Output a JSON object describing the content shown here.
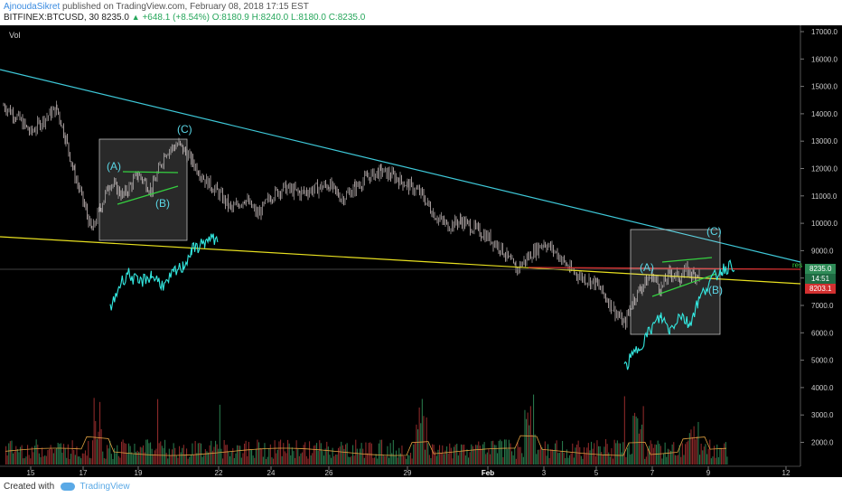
{
  "header": {
    "author": "AjnoudaSikret",
    "published_text": "published on TradingView.com, February 08, 2018 17:15 EST",
    "symbol": "BITFINEX:BTCUSD, 30",
    "last": "8235.0",
    "change": "+648.1 (+8.54%)",
    "ohlc": "O:8180.9 H:8240.0 L:8180.0 C:8235.0"
  },
  "pane_label": "Vol",
  "footer": {
    "created_with": "Created with",
    "brand": "TradingView"
  },
  "colors": {
    "background": "#000000",
    "candles": "#b0a0a0",
    "trendline_down": "#3ec8d8",
    "trendline_support": "#e8e020",
    "resistance": "#d23030",
    "triangle": "#35d040",
    "overlay_projection": "#33e8e0",
    "volume_up": "#2e8b57",
    "volume_down": "#a23030"
  },
  "chart_data": {
    "type": "line",
    "title": "BITFINEX:BTCUSD, 30",
    "y_axis": {
      "range": [
        1000,
        17500
      ],
      "ticks": [
        "17000.0",
        "16000.0",
        "15000.0",
        "14000.0",
        "13000.0",
        "12000.0",
        "11000.0",
        "10000.0",
        "9000.0",
        "8000.0",
        "7000.0",
        "6000.0",
        "5000.0",
        "4000.0",
        "3000.0",
        "2000.0"
      ]
    },
    "x_axis": {
      "ticks": [
        "15",
        "17",
        "19",
        "22",
        "24",
        "26",
        "29",
        "Feb",
        "3",
        "5",
        "7",
        "9",
        "12"
      ]
    },
    "price_labels": {
      "last": "8235.0",
      "countdown": "14:51",
      "line_level": "8203.1"
    },
    "resistance_label": "res",
    "wave_labels": [
      {
        "text": "(A)",
        "day": "Jan 18",
        "price": 12000
      },
      {
        "text": "(B)",
        "day": "Jan 19",
        "price": 10700
      },
      {
        "text": "(C)",
        "day": "Jan 20",
        "price": 13400
      },
      {
        "text": "(A)",
        "day": "Feb 7",
        "price": 8050
      },
      {
        "text": "(B)",
        "day": "Feb 8",
        "price": 7500
      },
      {
        "text": "(C)",
        "day": "Feb 8",
        "price": 9550
      }
    ],
    "series": [
      {
        "name": "",
        "values_approx": [
          [
            "Jan 14",
            14300
          ],
          [
            "Jan 14",
            13900
          ],
          [
            "Jan 15",
            13300
          ],
          [
            "Jan 15",
            13800
          ],
          [
            "Jan 16",
            14200
          ],
          [
            "Jan 16",
            13100
          ],
          [
            "Jan 16",
            11800
          ],
          [
            "Jan 17",
            10800
          ],
          [
            "Jan 17",
            9700
          ],
          [
            "Jan 17",
            10600
          ],
          [
            "Jan 18",
            11500
          ],
          [
            "Jan 18",
            11000
          ],
          [
            "Jan 19",
            11800
          ],
          [
            "Jan 19",
            11200
          ],
          [
            "Jan 20",
            12600
          ],
          [
            "Jan 20",
            12900
          ],
          [
            "Jan 21",
            12300
          ],
          [
            "Jan 21",
            11600
          ],
          [
            "Jan 22",
            11100
          ],
          [
            "Jan 22",
            10500
          ],
          [
            "Jan 23",
            10900
          ],
          [
            "Jan 23",
            10300
          ],
          [
            "Jan 24",
            11000
          ],
          [
            "Jan 24",
            11300
          ],
          [
            "Jan 25",
            11100
          ],
          [
            "Jan 26",
            11400
          ],
          [
            "Jan 26",
            10900
          ],
          [
            "Jan 27",
            11300
          ],
          [
            "Jan 27",
            11700
          ],
          [
            "Jan 28",
            11900
          ],
          [
            "Jan 28",
            11700
          ],
          [
            "Jan 29",
            11400
          ],
          [
            "Jan 29",
            11100
          ],
          [
            "Jan 30",
            10300
          ],
          [
            "Jan 30",
            9900
          ],
          [
            "Jan 31",
            10100
          ],
          [
            "Feb 1",
            9500
          ],
          [
            "Feb 1",
            9100
          ],
          [
            "Feb 2",
            8300
          ],
          [
            "Feb 2",
            8800
          ],
          [
            "Feb 3",
            9300
          ],
          [
            "Feb 3",
            8900
          ],
          [
            "Feb 4",
            8300
          ],
          [
            "Feb 4",
            8000
          ],
          [
            "Feb 5",
            7800
          ],
          [
            "Feb 5",
            7100
          ],
          [
            "Feb 6",
            6300
          ],
          [
            "Feb 6",
            7200
          ],
          [
            "Feb 6",
            7700
          ],
          [
            "Feb 7",
            8100
          ],
          [
            "Feb 7",
            7600
          ],
          [
            "Feb 7",
            8200
          ],
          [
            "Feb 8",
            8000
          ],
          [
            "Feb 8",
            8300
          ],
          [
            "Feb 8",
            8100
          ],
          [
            "Feb 8",
            8200
          ]
        ]
      }
    ],
    "overlay_projection": {
      "name": "",
      "values_approx": [
        [
          "Jan 18",
          6800
        ],
        [
          "Jan 18",
          7700
        ],
        [
          "Jan 18",
          8200
        ],
        [
          "Jan 19",
          7800
        ],
        [
          "Jan 19",
          8100
        ],
        [
          "Jan 20",
          7700
        ],
        [
          "Jan 20",
          8200
        ],
        [
          "Jan 20",
          8400
        ],
        [
          "Jan 21",
          9000
        ],
        [
          "Jan 21",
          9300
        ],
        [
          "Jan 22",
          9500
        ],
        [
          "Feb 6",
          4700
        ],
        [
          "Feb 7",
          6200
        ],
        [
          "Feb 7",
          6600
        ],
        [
          "Feb 7",
          6100
        ],
        [
          "Feb 8",
          6700
        ],
        [
          "Feb 8",
          6300
        ],
        [
          "Feb 8",
          7100
        ],
        [
          "Feb 9",
          7800
        ],
        [
          "Feb 9",
          8300
        ],
        [
          "Feb 10",
          8500
        ]
      ]
    },
    "volume_pane": {
      "label": "Vol",
      "spikes_days": [
        "Jan 17",
        "Jan 29",
        "Feb 2",
        "Feb 6",
        "Feb 8"
      ]
    }
  }
}
